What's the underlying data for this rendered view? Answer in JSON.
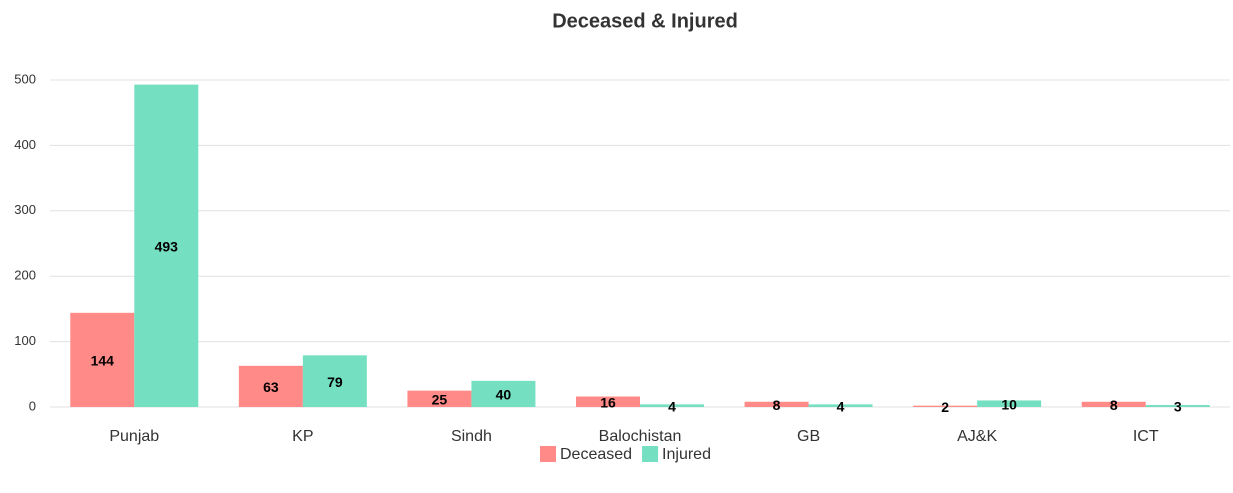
{
  "chart_data": {
    "type": "bar",
    "title": "Deceased & Injured",
    "categories": [
      "Punjab",
      "KP",
      "Sindh",
      "Balochistan",
      "GB",
      "AJ&K",
      "ICT"
    ],
    "series": [
      {
        "name": "Deceased",
        "color": "#ff8a87",
        "values": [
          144,
          63,
          25,
          16,
          8,
          2,
          8
        ]
      },
      {
        "name": "Injured",
        "color": "#74dfc1",
        "values": [
          493,
          79,
          40,
          4,
          4,
          10,
          3
        ]
      }
    ],
    "ylim": [
      0,
      500
    ],
    "yticks": [
      0,
      100,
      200,
      300,
      400,
      500
    ],
    "grid": true,
    "legend": "bottom"
  }
}
